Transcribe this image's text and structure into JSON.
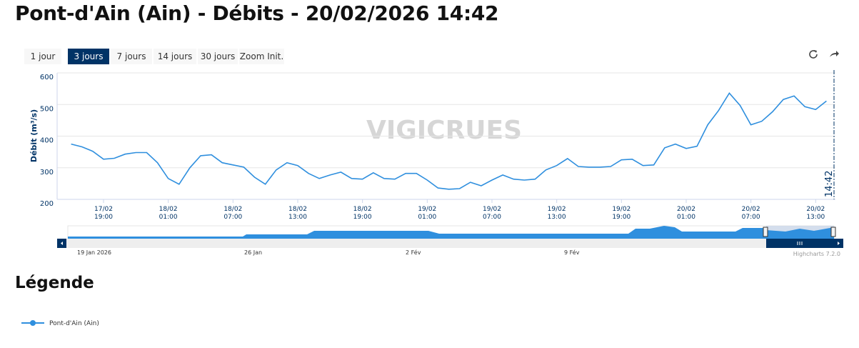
{
  "title": "Pont-d'Ain (Ain) - Débits - 20/02/2026 14:42",
  "range_buttons": [
    "1 jour",
    "3 jours",
    "7 jours",
    "14 jours",
    "30 jours",
    "Zoom Init."
  ],
  "selected_range": 1,
  "chart_data": {
    "type": "line",
    "watermark": "VIGICRUES",
    "y_label": "Débit (m³/s)",
    "x": [
      "17/02 16:00",
      "17/02 17:00",
      "17/02 18:00",
      "17/02 19:00",
      "17/02 20:00",
      "17/02 21:00",
      "17/02 22:00",
      "17/02 23:00",
      "18/02 00:00",
      "18/02 01:00",
      "18/02 02:00",
      "18/02 03:00",
      "18/02 04:00",
      "18/02 05:00",
      "18/02 06:00",
      "18/02 07:00",
      "18/02 08:00",
      "18/02 09:00",
      "18/02 10:00",
      "18/02 11:00",
      "18/02 12:00",
      "18/02 13:00",
      "18/02 14:00",
      "18/02 15:00",
      "18/02 16:00",
      "18/02 17:00",
      "18/02 18:00",
      "18/02 19:00",
      "18/02 20:00",
      "18/02 21:00",
      "18/02 22:00",
      "18/02 23:00",
      "19/02 00:00",
      "19/02 01:00",
      "19/02 02:00",
      "19/02 03:00",
      "19/02 04:00",
      "19/02 05:00",
      "19/02 06:00",
      "19/02 07:00",
      "19/02 08:00",
      "19/02 09:00",
      "19/02 10:00",
      "19/02 11:00",
      "19/02 12:00",
      "19/02 13:00",
      "19/02 14:00",
      "19/02 15:00",
      "19/02 16:00",
      "19/02 17:00",
      "19/02 18:00",
      "19/02 19:00",
      "19/02 20:00",
      "19/02 21:00",
      "19/02 22:00",
      "19/02 23:00",
      "20/02 00:00",
      "20/02 01:00",
      "20/02 02:00",
      "20/02 03:00",
      "20/02 04:00",
      "20/02 05:00",
      "20/02 06:00",
      "20/02 07:00",
      "20/02 08:00",
      "20/02 09:00",
      "20/02 10:00",
      "20/02 11:00",
      "20/02 12:00",
      "20/02 13:00",
      "20/02 14:00"
    ],
    "series": [
      {
        "name": "Pont-d'Ain (Ain)",
        "color": "#2f8fde",
        "values": [
          375,
          366,
          352,
          327,
          330,
          343,
          348,
          348,
          316,
          266,
          248,
          300,
          338,
          341,
          316,
          309,
          302,
          270,
          248,
          293,
          316,
          307,
          282,
          266,
          277,
          286,
          266,
          264,
          284,
          266,
          264,
          282,
          282,
          261,
          236,
          232,
          234,
          254,
          243,
          261,
          277,
          264,
          261,
          264,
          293,
          307,
          329,
          304,
          302,
          302,
          304,
          325,
          327,
          307,
          309,
          363,
          375,
          361,
          368,
          436,
          481,
          536,
          497,
          436,
          447,
          477,
          516,
          527,
          493,
          484,
          511
        ]
      }
    ],
    "xlim": [
      "17/02 14:42",
      "20/02 14:42"
    ],
    "xticks": [
      "17/02 19:00",
      "18/02 01:00",
      "18/02 07:00",
      "18/02 13:00",
      "18/02 19:00",
      "19/02 01:00",
      "19/02 07:00",
      "19/02 13:00",
      "19/02 19:00",
      "20/02 01:00",
      "20/02 07:00",
      "20/02 13:00"
    ],
    "ylim": [
      200,
      600
    ],
    "yticks": [
      200,
      300,
      400,
      500,
      600
    ],
    "grid": true,
    "plot_line": {
      "x": "20/02 14:42",
      "label": "14:42"
    },
    "navigator_labels": [
      "19 Jan 2026",
      "26 Jan",
      "2 Fév",
      "9 Fév"
    ],
    "credits": "Highcharts 7.2.0"
  },
  "legend_title": "Légende"
}
